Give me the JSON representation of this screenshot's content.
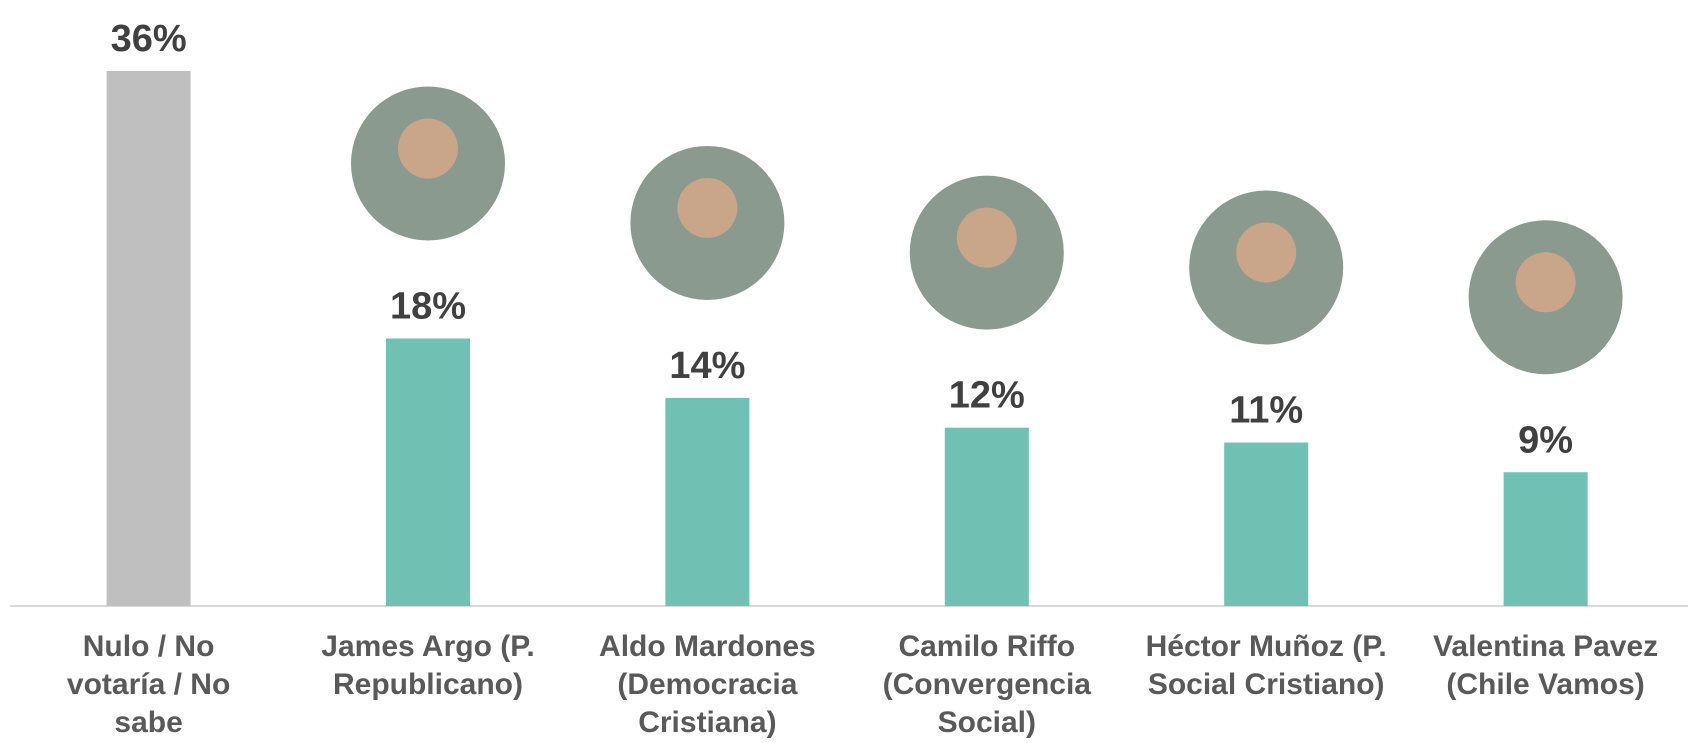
{
  "chart_data": {
    "type": "bar",
    "categories": [
      "Nulo / No votaría / No sabe",
      "James Argo (P. Republicano)",
      "Aldo Mardones (Democracia Cristiana)",
      "Camilo Riffo (Convergencia Social)",
      "Héctor Muñoz (P. Social Cristiano)",
      "Valentina Pavez (Chile Vamos)"
    ],
    "values": [
      36,
      18,
      14,
      12,
      11,
      9
    ],
    "value_labels": [
      "36%",
      "18%",
      "14%",
      "12%",
      "11%",
      "9%"
    ],
    "colors": [
      "#bfbfbf",
      "#70c1b3",
      "#70c1b3",
      "#70c1b3",
      "#70c1b3",
      "#70c1b3"
    ]
  }
}
